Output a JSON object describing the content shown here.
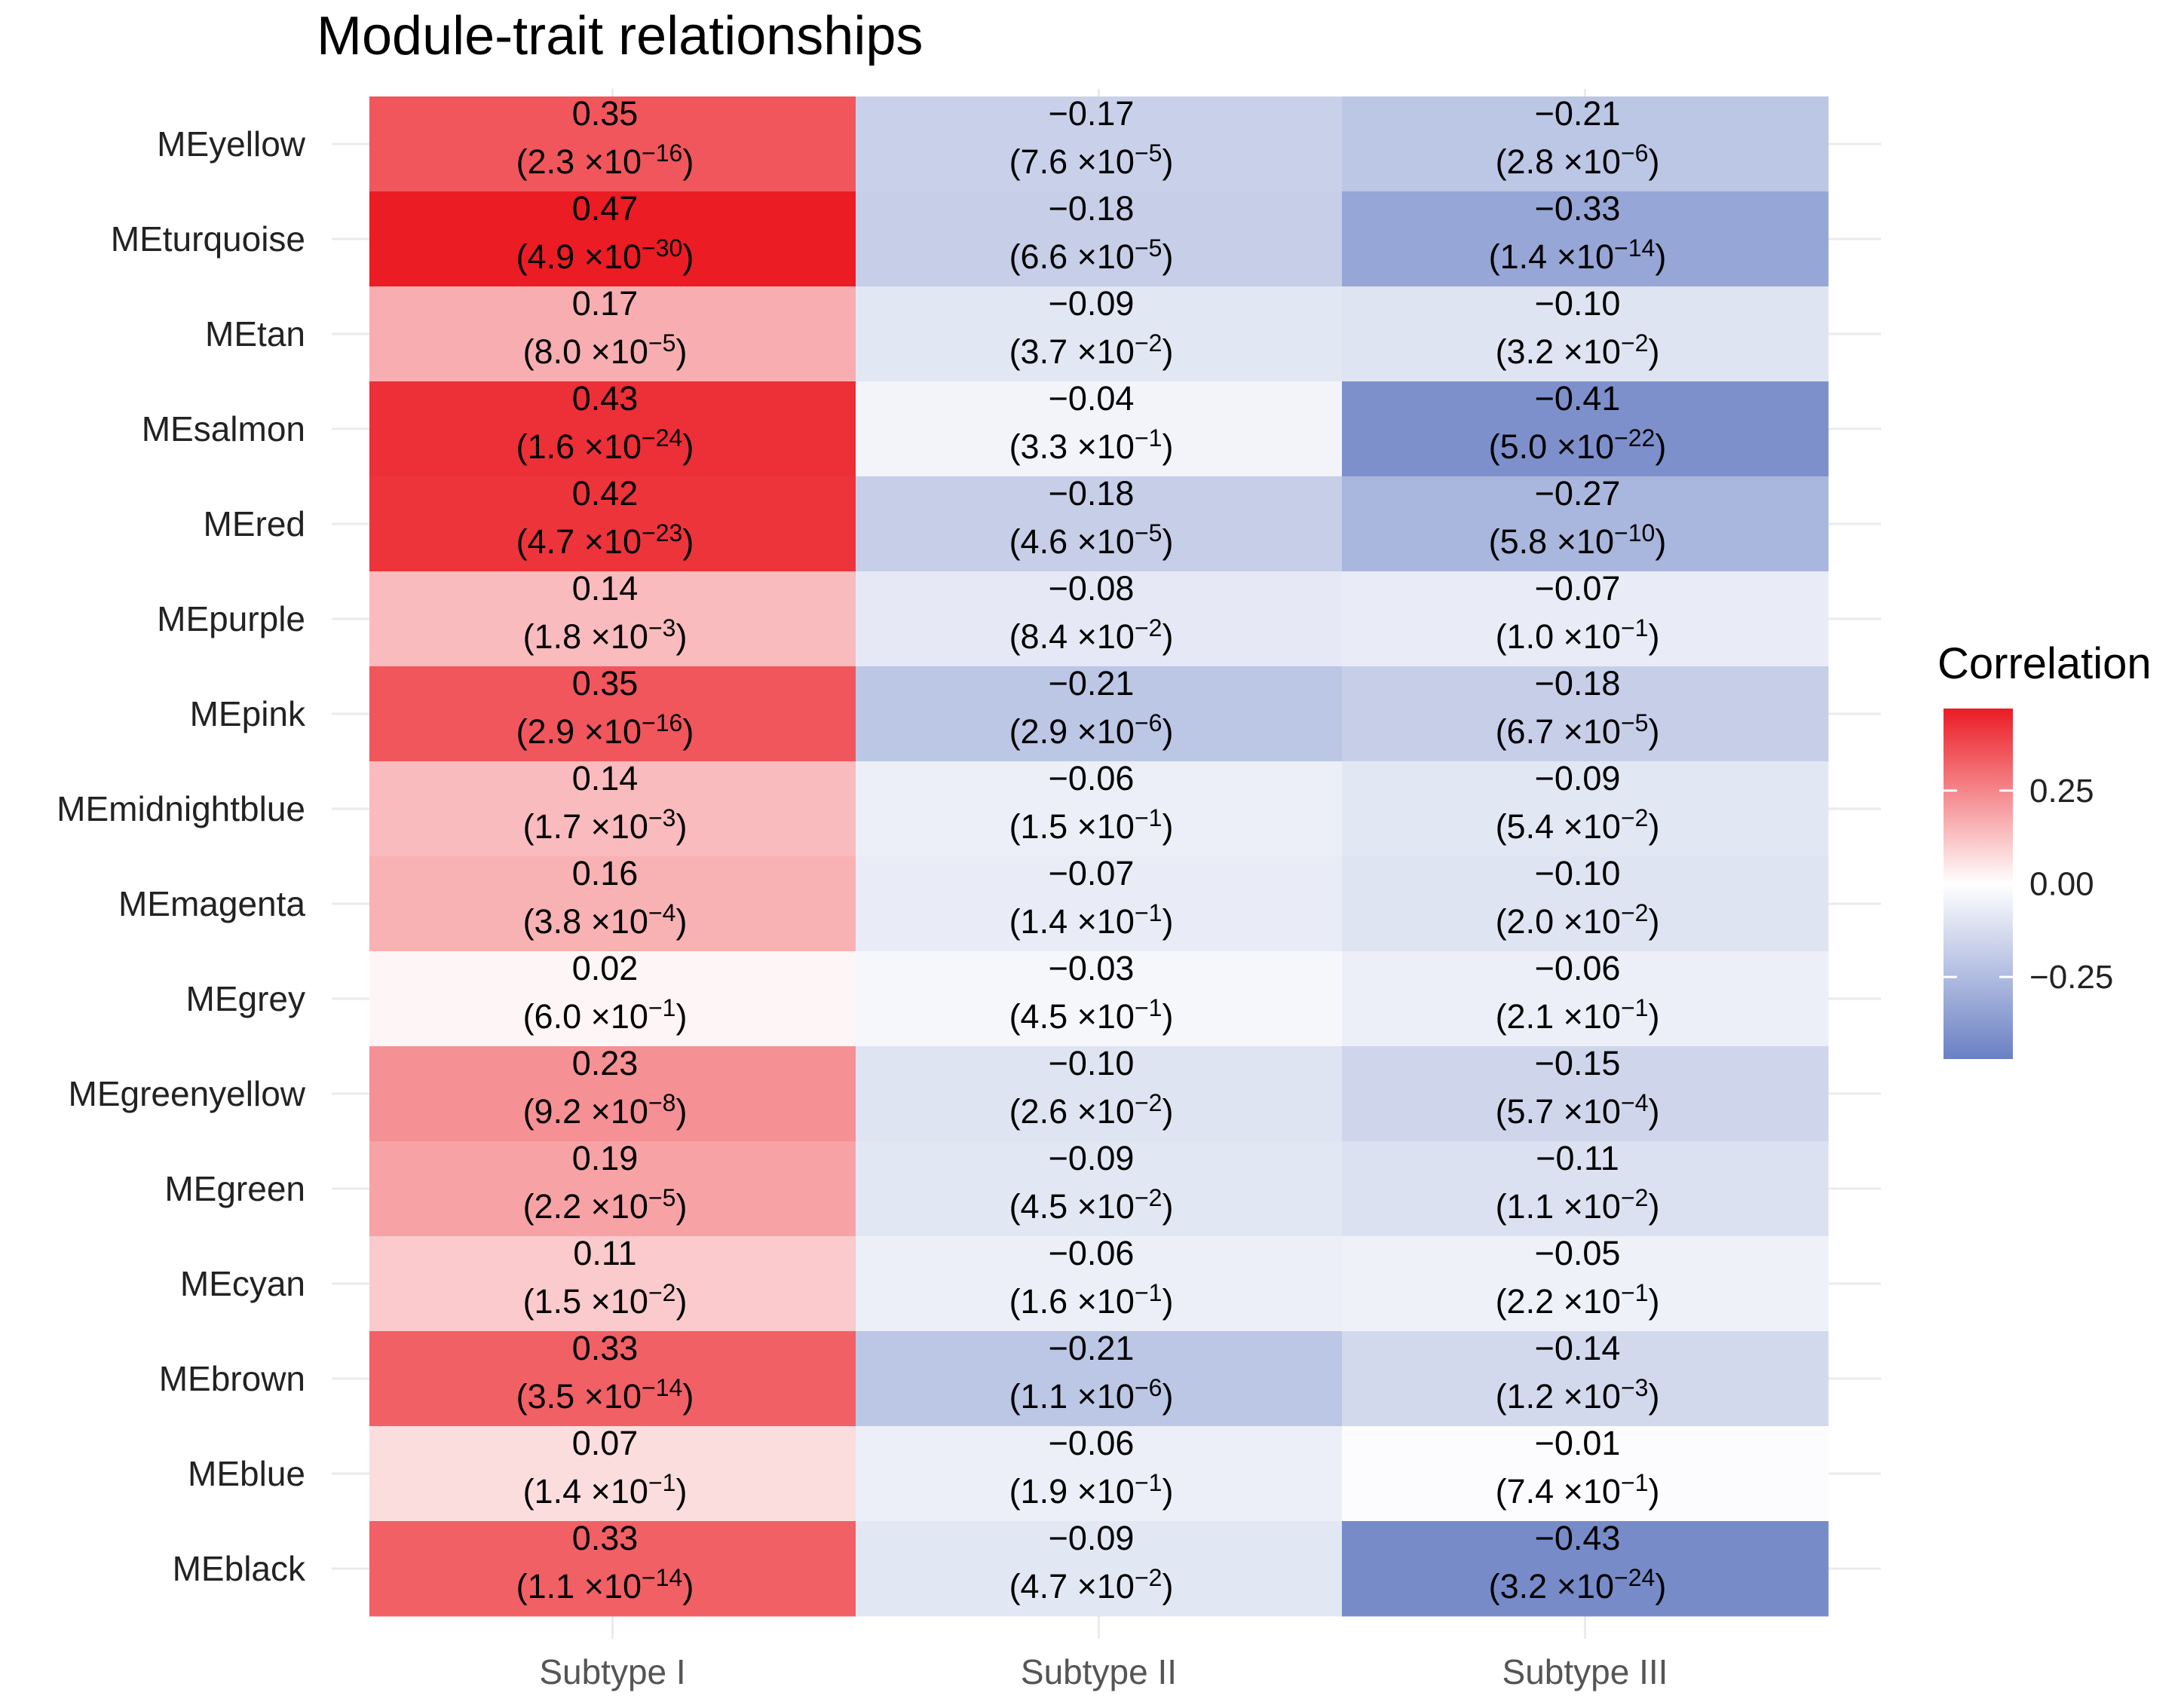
{
  "chart_data": {
    "type": "heatmap",
    "title": "Module-trait relationships",
    "x_categories": [
      "Subtype I",
      "Subtype II",
      "Subtype III"
    ],
    "y_categories": [
      "MEyellow",
      "MEturquoise",
      "MEtan",
      "MEsalmon",
      "MEred",
      "MEpurple",
      "MEpink",
      "MEmidnightblue",
      "MEmagenta",
      "MEgrey",
      "MEgreenyellow",
      "MEgreen",
      "MEcyan",
      "MEbrown",
      "MEblue",
      "MEblack"
    ],
    "cells": [
      [
        {
          "r": "0.35",
          "p_m": "2.3",
          "p_e": "-16"
        },
        {
          "r": "−0.17",
          "p_m": "7.6",
          "p_e": "-5"
        },
        {
          "r": "−0.21",
          "p_m": "2.8",
          "p_e": "-6"
        }
      ],
      [
        {
          "r": "0.47",
          "p_m": "4.9",
          "p_e": "-30"
        },
        {
          "r": "−0.18",
          "p_m": "6.6",
          "p_e": "-5"
        },
        {
          "r": "−0.33",
          "p_m": "1.4",
          "p_e": "-14"
        }
      ],
      [
        {
          "r": "0.17",
          "p_m": "8.0",
          "p_e": "-5"
        },
        {
          "r": "−0.09",
          "p_m": "3.7",
          "p_e": "-2"
        },
        {
          "r": "−0.10",
          "p_m": "3.2",
          "p_e": "-2"
        }
      ],
      [
        {
          "r": "0.43",
          "p_m": "1.6",
          "p_e": "-24"
        },
        {
          "r": "−0.04",
          "p_m": "3.3",
          "p_e": "-1"
        },
        {
          "r": "−0.41",
          "p_m": "5.0",
          "p_e": "-22"
        }
      ],
      [
        {
          "r": "0.42",
          "p_m": "4.7",
          "p_e": "-23"
        },
        {
          "r": "−0.18",
          "p_m": "4.6",
          "p_e": "-5"
        },
        {
          "r": "−0.27",
          "p_m": "5.8",
          "p_e": "-10"
        }
      ],
      [
        {
          "r": "0.14",
          "p_m": "1.8",
          "p_e": "-3"
        },
        {
          "r": "−0.08",
          "p_m": "8.4",
          "p_e": "-2"
        },
        {
          "r": "−0.07",
          "p_m": "1.0",
          "p_e": "-1"
        }
      ],
      [
        {
          "r": "0.35",
          "p_m": "2.9",
          "p_e": "-16"
        },
        {
          "r": "−0.21",
          "p_m": "2.9",
          "p_e": "-6"
        },
        {
          "r": "−0.18",
          "p_m": "6.7",
          "p_e": "-5"
        }
      ],
      [
        {
          "r": "0.14",
          "p_m": "1.7",
          "p_e": "-3"
        },
        {
          "r": "−0.06",
          "p_m": "1.5",
          "p_e": "-1"
        },
        {
          "r": "−0.09",
          "p_m": "5.4",
          "p_e": "-2"
        }
      ],
      [
        {
          "r": "0.16",
          "p_m": "3.8",
          "p_e": "-4"
        },
        {
          "r": "−0.07",
          "p_m": "1.4",
          "p_e": "-1"
        },
        {
          "r": "−0.10",
          "p_m": "2.0",
          "p_e": "-2"
        }
      ],
      [
        {
          "r": "0.02",
          "p_m": "6.0",
          "p_e": "-1"
        },
        {
          "r": "−0.03",
          "p_m": "4.5",
          "p_e": "-1"
        },
        {
          "r": "−0.06",
          "p_m": "2.1",
          "p_e": "-1"
        }
      ],
      [
        {
          "r": "0.23",
          "p_m": "9.2",
          "p_e": "-8"
        },
        {
          "r": "−0.10",
          "p_m": "2.6",
          "p_e": "-2"
        },
        {
          "r": "−0.15",
          "p_m": "5.7",
          "p_e": "-4"
        }
      ],
      [
        {
          "r": "0.19",
          "p_m": "2.2",
          "p_e": "-5"
        },
        {
          "r": "−0.09",
          "p_m": "4.5",
          "p_e": "-2"
        },
        {
          "r": "−0.11",
          "p_m": "1.1",
          "p_e": "-2"
        }
      ],
      [
        {
          "r": "0.11",
          "p_m": "1.5",
          "p_e": "-2"
        },
        {
          "r": "−0.06",
          "p_m": "1.6",
          "p_e": "-1"
        },
        {
          "r": "−0.05",
          "p_m": "2.2",
          "p_e": "-1"
        }
      ],
      [
        {
          "r": "0.33",
          "p_m": "3.5",
          "p_e": "-14"
        },
        {
          "r": "−0.21",
          "p_m": "1.1",
          "p_e": "-6"
        },
        {
          "r": "−0.14",
          "p_m": "1.2",
          "p_e": "-3"
        }
      ],
      [
        {
          "r": "0.07",
          "p_m": "1.4",
          "p_e": "-1"
        },
        {
          "r": "−0.06",
          "p_m": "1.9",
          "p_e": "-1"
        },
        {
          "r": "−0.01",
          "p_m": "7.4",
          "p_e": "-1"
        }
      ],
      [
        {
          "r": "0.33",
          "p_m": "1.1",
          "p_e": "-14"
        },
        {
          "r": "−0.09",
          "p_m": "4.7",
          "p_e": "-2"
        },
        {
          "r": "−0.43",
          "p_m": "3.2",
          "p_e": "-24"
        }
      ]
    ],
    "legend": {
      "title": "Correlation",
      "ticks": [
        {
          "value": 0.25,
          "label": "0.25"
        },
        {
          "value": 0.0,
          "label": "0.00"
        },
        {
          "value": -0.25,
          "label": "−0.25"
        }
      ],
      "range": [
        -0.47,
        0.47
      ],
      "colors": {
        "low": "#6a80c4",
        "mid": "#ffffff",
        "high": "#eb1c24"
      },
      "placement": "right"
    },
    "grid": true
  }
}
